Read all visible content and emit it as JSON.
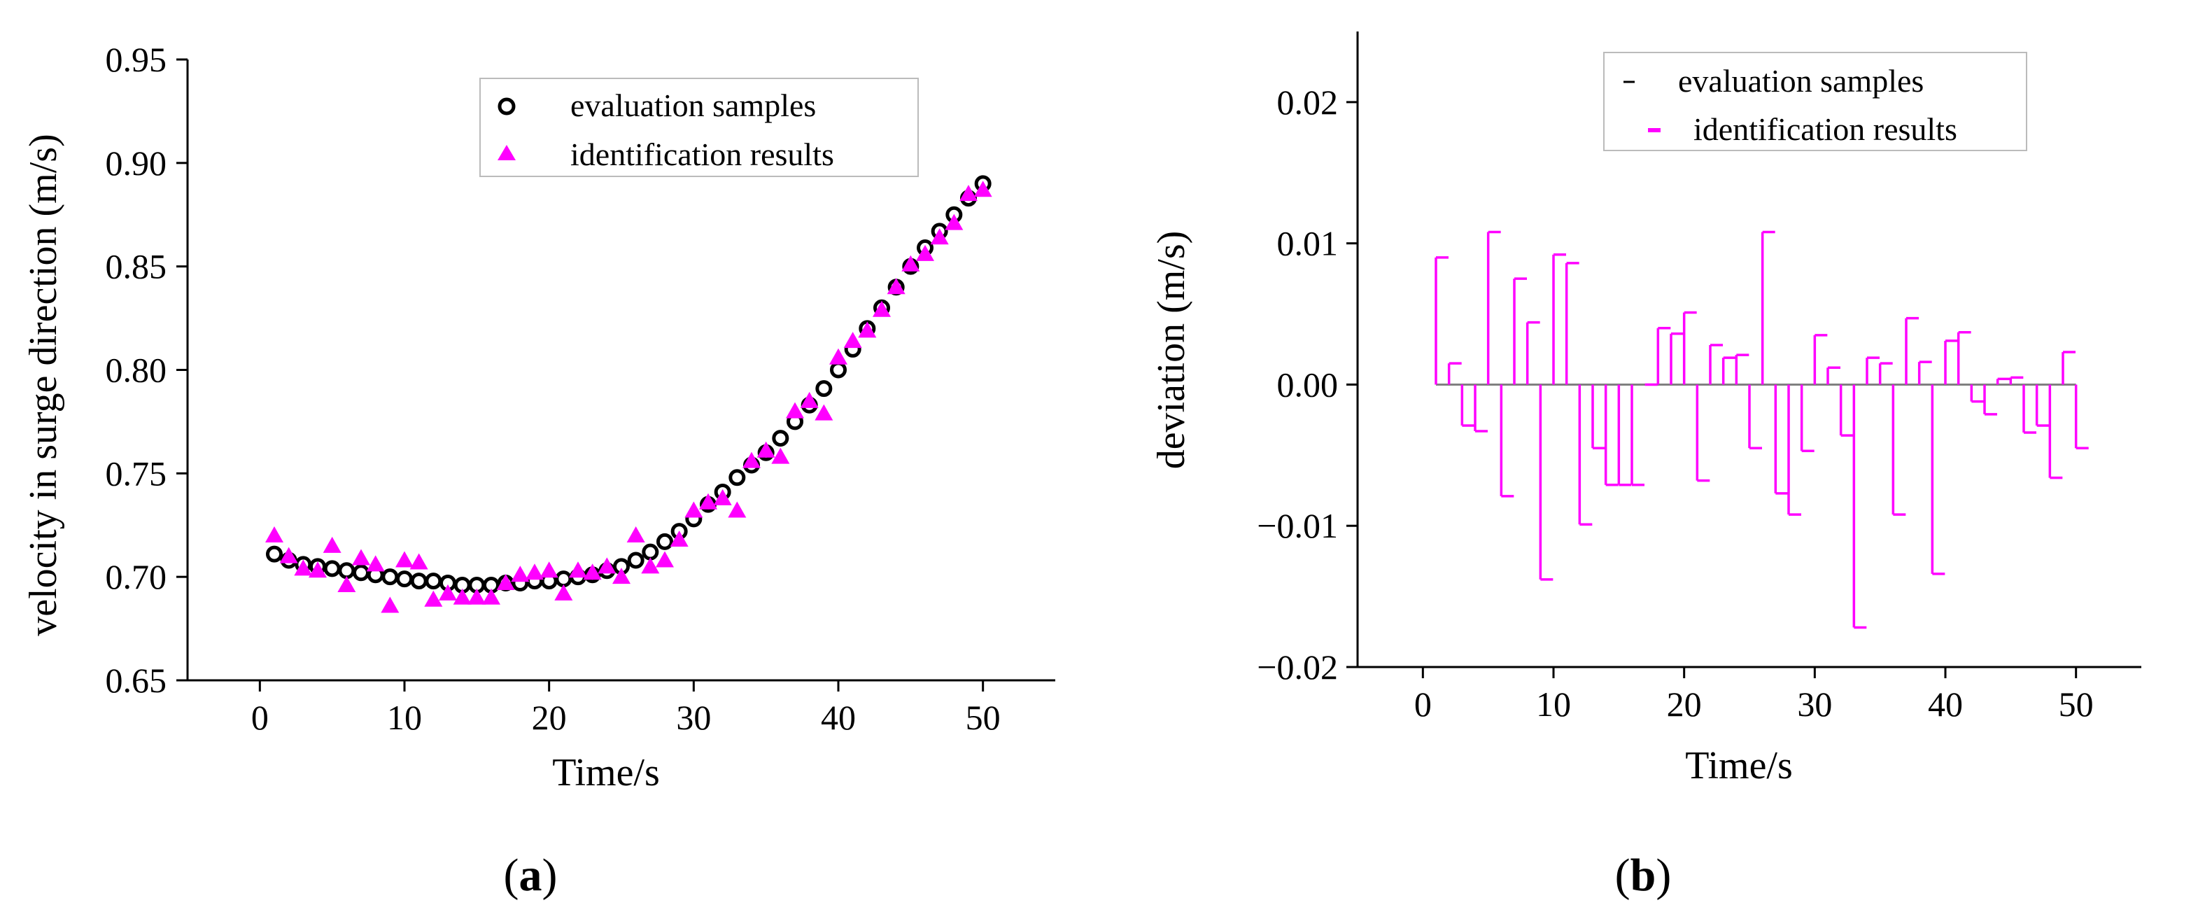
{
  "chart_data": [
    {
      "type": "scatter",
      "panel_label": "a",
      "xlabel": "Time/s",
      "ylabel": "velocity in surge direction (m/s)",
      "xlim": [
        -5,
        55
      ],
      "ylim": [
        0.65,
        0.95
      ],
      "xticks": [
        "0",
        "10",
        "20",
        "30",
        "40",
        "50"
      ],
      "yticks": [
        "0.65",
        "0.70",
        "0.75",
        "0.80",
        "0.85",
        "0.90",
        "0.95"
      ],
      "legend_position": "top-right",
      "series": [
        {
          "name": "evaluation samples",
          "marker": "open-circle",
          "color": "#000000",
          "x": [
            1,
            2,
            3,
            4,
            5,
            6,
            7,
            8,
            9,
            10,
            11,
            12,
            13,
            14,
            15,
            16,
            17,
            18,
            19,
            20,
            21,
            22,
            23,
            24,
            25,
            26,
            27,
            28,
            29,
            30,
            31,
            32,
            33,
            34,
            35,
            36,
            37,
            38,
            39,
            40,
            41,
            42,
            43,
            44,
            45,
            46,
            47,
            48,
            49,
            50
          ],
          "values": [
            0.711,
            0.708,
            0.706,
            0.705,
            0.704,
            0.703,
            0.702,
            0.701,
            0.7,
            0.699,
            0.698,
            0.698,
            0.697,
            0.696,
            0.696,
            0.696,
            0.697,
            0.697,
            0.698,
            0.698,
            0.699,
            0.7,
            0.701,
            0.703,
            0.705,
            0.708,
            0.712,
            0.717,
            0.722,
            0.728,
            0.735,
            0.741,
            0.748,
            0.754,
            0.76,
            0.767,
            0.775,
            0.783,
            0.791,
            0.8,
            0.81,
            0.82,
            0.83,
            0.84,
            0.85,
            0.859,
            0.867,
            0.875,
            0.883,
            0.89
          ]
        },
        {
          "name": "identification results",
          "marker": "filled-triangle",
          "color": "#ff00ff",
          "x": [
            1,
            2,
            3,
            4,
            5,
            6,
            7,
            8,
            9,
            10,
            11,
            12,
            13,
            14,
            15,
            16,
            17,
            18,
            19,
            20,
            21,
            22,
            23,
            24,
            25,
            26,
            27,
            28,
            29,
            30,
            31,
            32,
            33,
            34,
            35,
            36,
            37,
            38,
            39,
            40,
            41,
            42,
            43,
            44,
            45,
            46,
            47,
            48,
            49,
            50
          ],
          "values": [
            0.72,
            0.71,
            0.704,
            0.703,
            0.715,
            0.696,
            0.709,
            0.706,
            0.686,
            0.708,
            0.707,
            0.689,
            0.692,
            0.69,
            0.69,
            0.69,
            0.697,
            0.701,
            0.702,
            0.703,
            0.692,
            0.703,
            0.702,
            0.705,
            0.7,
            0.72,
            0.705,
            0.708,
            0.718,
            0.732,
            0.736,
            0.738,
            0.732,
            0.756,
            0.761,
            0.758,
            0.78,
            0.785,
            0.779,
            0.806,
            0.814,
            0.819,
            0.829,
            0.84,
            0.851,
            0.856,
            0.864,
            0.871,
            0.885,
            0.887
          ]
        }
      ]
    },
    {
      "type": "bar",
      "panel_label": "b",
      "xlabel": "Time/s",
      "ylabel": "deviation (m/s)",
      "xlim": [
        -5,
        55
      ],
      "ylim": [
        -0.02,
        0.025
      ],
      "xticks": [
        "0",
        "10",
        "20",
        "30",
        "40",
        "50"
      ],
      "yticks": [
        "−0.02",
        "−0.01",
        "0.00",
        "0.01",
        "0.02"
      ],
      "legend_position": "top-right",
      "series": [
        {
          "name": "evaluation samples",
          "marker": "dash",
          "color": "#000000",
          "x": [
            1,
            50
          ],
          "values": [
            0,
            0
          ]
        },
        {
          "name": "identification results",
          "marker": "dash",
          "color": "#ff00ff",
          "x": [
            1,
            2,
            3,
            4,
            5,
            6,
            7,
            8,
            9,
            10,
            11,
            12,
            13,
            14,
            15,
            16,
            17,
            18,
            19,
            20,
            21,
            22,
            23,
            24,
            25,
            26,
            27,
            28,
            29,
            30,
            31,
            32,
            33,
            34,
            35,
            36,
            37,
            38,
            39,
            40,
            41,
            42,
            43,
            44,
            45,
            46,
            47,
            48,
            49,
            50
          ],
          "values": [
            0.009,
            0.0015,
            -0.0029,
            -0.0033,
            0.0108,
            -0.0079,
            0.0075,
            0.0044,
            -0.0138,
            0.0092,
            0.0086,
            -0.0099,
            -0.0045,
            -0.0071,
            -0.0071,
            -0.0071,
            0.0,
            0.004,
            0.0036,
            0.0051,
            -0.0068,
            0.0028,
            0.0019,
            0.0021,
            -0.0045,
            0.0108,
            -0.0077,
            -0.0092,
            -0.0047,
            0.0035,
            0.0012,
            -0.0036,
            -0.0172,
            0.0019,
            0.0015,
            -0.0092,
            0.0047,
            0.0016,
            -0.0134,
            0.0031,
            0.0037,
            -0.0012,
            -0.0021,
            0.0004,
            0.0005,
            -0.0034,
            -0.0029,
            -0.0066,
            0.0023,
            -0.0045
          ]
        }
      ]
    }
  ]
}
